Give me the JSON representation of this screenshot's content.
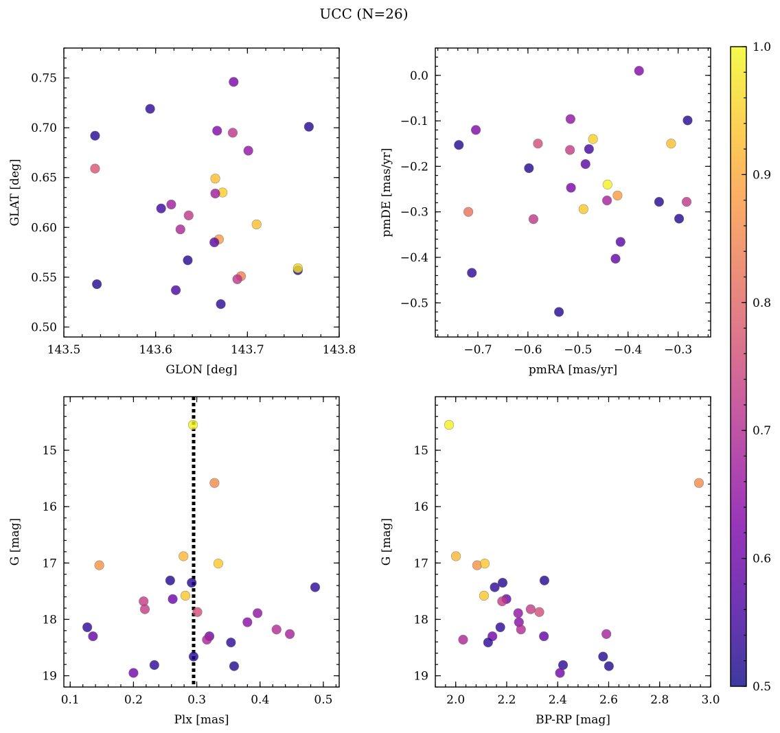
{
  "title": "UCC (N=26)",
  "colormap": {
    "name": "plasma",
    "alpha": 0.8,
    "range": [
      0.5,
      1.0
    ],
    "ticks": [
      0.5,
      0.6,
      0.7,
      0.8,
      0.9,
      1.0
    ],
    "tick_labels": [
      "0.5",
      "0.6",
      "0.7",
      "0.8",
      "0.9",
      "1.0"
    ]
  },
  "chart_data": [
    {
      "type": "scatter",
      "id": "lonlat",
      "xlabel": "GLON [deg]",
      "ylabel": "GLAT [deg]",
      "xlim": [
        143.5,
        143.8
      ],
      "ylim": [
        0.49,
        0.78
      ],
      "xticks": [
        143.5,
        143.6,
        143.7,
        143.8
      ],
      "xtick_labels": [
        "143.5",
        "143.6",
        "143.7",
        "143.8"
      ],
      "yticks": [
        0.5,
        0.55,
        0.6,
        0.65,
        0.7,
        0.75
      ],
      "ytick_labels": [
        "0.50",
        "0.55",
        "0.60",
        "0.65",
        "0.70",
        "0.75"
      ],
      "invert_y": false,
      "points": [
        {
          "x": 143.534,
          "y": 0.692,
          "c": 0.52
        },
        {
          "x": 143.594,
          "y": 0.719,
          "c": 0.53
        },
        {
          "x": 143.685,
          "y": 0.746,
          "c": 0.62
        },
        {
          "x": 143.767,
          "y": 0.701,
          "c": 0.52
        },
        {
          "x": 143.667,
          "y": 0.697,
          "c": 0.63
        },
        {
          "x": 143.684,
          "y": 0.695,
          "c": 0.72
        },
        {
          "x": 143.701,
          "y": 0.677,
          "c": 0.65
        },
        {
          "x": 143.534,
          "y": 0.659,
          "c": 0.77
        },
        {
          "x": 143.665,
          "y": 0.649,
          "c": 0.93
        },
        {
          "x": 143.673,
          "y": 0.635,
          "c": 0.95
        },
        {
          "x": 143.665,
          "y": 0.634,
          "c": 0.67
        },
        {
          "x": 143.617,
          "y": 0.623,
          "c": 0.67
        },
        {
          "x": 143.606,
          "y": 0.619,
          "c": 0.55
        },
        {
          "x": 143.636,
          "y": 0.612,
          "c": 0.72
        },
        {
          "x": 143.71,
          "y": 0.603,
          "c": 0.93
        },
        {
          "x": 143.627,
          "y": 0.598,
          "c": 0.69
        },
        {
          "x": 143.669,
          "y": 0.588,
          "c": 0.88
        },
        {
          "x": 143.664,
          "y": 0.585,
          "c": 0.58
        },
        {
          "x": 143.635,
          "y": 0.567,
          "c": 0.52
        },
        {
          "x": 143.755,
          "y": 0.557,
          "c": 0.52
        },
        {
          "x": 143.755,
          "y": 0.559,
          "c": 0.97
        },
        {
          "x": 143.536,
          "y": 0.543,
          "c": 0.52
        },
        {
          "x": 143.693,
          "y": 0.551,
          "c": 0.84
        },
        {
          "x": 143.689,
          "y": 0.548,
          "c": 0.72
        },
        {
          "x": 143.622,
          "y": 0.537,
          "c": 0.56
        },
        {
          "x": 143.671,
          "y": 0.523,
          "c": 0.53
        }
      ]
    },
    {
      "type": "scatter",
      "id": "pm",
      "xlabel": "pmRA [mas/yr]",
      "ylabel": "pmDE [mas/yr]",
      "xlim": [
        -0.785,
        -0.235
      ],
      "ylim": [
        -0.575,
        0.06
      ],
      "xticks": [
        -0.7,
        -0.6,
        -0.5,
        -0.4,
        -0.3
      ],
      "xtick_labels": [
        "−0.7",
        "−0.6",
        "−0.5",
        "−0.4",
        "−0.3"
      ],
      "yticks": [
        -0.5,
        -0.4,
        -0.3,
        -0.2,
        -0.1,
        0.0
      ],
      "ytick_labels": [
        "−0.5",
        "−0.4",
        "−0.3",
        "−0.2",
        "−0.1",
        "0.0"
      ],
      "invert_y": false,
      "points": [
        {
          "x": -0.378,
          "y": 0.01,
          "c": 0.63
        },
        {
          "x": -0.281,
          "y": -0.099,
          "c": 0.52
        },
        {
          "x": -0.515,
          "y": -0.096,
          "c": 0.65
        },
        {
          "x": -0.704,
          "y": -0.12,
          "c": 0.63
        },
        {
          "x": -0.47,
          "y": -0.14,
          "c": 0.95
        },
        {
          "x": -0.314,
          "y": -0.15,
          "c": 0.93
        },
        {
          "x": -0.738,
          "y": -0.153,
          "c": 0.52
        },
        {
          "x": -0.58,
          "y": -0.15,
          "c": 0.76
        },
        {
          "x": -0.516,
          "y": -0.164,
          "c": 0.73
        },
        {
          "x": -0.478,
          "y": -0.162,
          "c": 0.55
        },
        {
          "x": -0.485,
          "y": -0.195,
          "c": 0.58
        },
        {
          "x": -0.598,
          "y": -0.204,
          "c": 0.52
        },
        {
          "x": -0.441,
          "y": -0.24,
          "c": 0.99
        },
        {
          "x": -0.514,
          "y": -0.247,
          "c": 0.62
        },
        {
          "x": -0.421,
          "y": -0.264,
          "c": 0.88
        },
        {
          "x": -0.442,
          "y": -0.275,
          "c": 0.68
        },
        {
          "x": -0.338,
          "y": -0.278,
          "c": 0.52
        },
        {
          "x": -0.283,
          "y": -0.278,
          "c": 0.72
        },
        {
          "x": -0.489,
          "y": -0.294,
          "c": 0.94
        },
        {
          "x": -0.719,
          "y": -0.3,
          "c": 0.82
        },
        {
          "x": -0.589,
          "y": -0.316,
          "c": 0.72
        },
        {
          "x": -0.298,
          "y": -0.315,
          "c": 0.52
        },
        {
          "x": -0.415,
          "y": -0.366,
          "c": 0.58
        },
        {
          "x": -0.425,
          "y": -0.403,
          "c": 0.59
        },
        {
          "x": -0.712,
          "y": -0.434,
          "c": 0.53
        },
        {
          "x": -0.538,
          "y": -0.52,
          "c": 0.52
        }
      ]
    },
    {
      "type": "scatter",
      "id": "plx",
      "xlabel": "Plx [mas]",
      "ylabel": "G [mag]",
      "xlim": [
        0.09,
        0.525
      ],
      "ylim": [
        19.2,
        14.05
      ],
      "xticks": [
        0.1,
        0.2,
        0.3,
        0.4,
        0.5
      ],
      "xtick_labels": [
        "0.1",
        "0.2",
        "0.3",
        "0.4",
        "0.5"
      ],
      "yticks": [
        15,
        16,
        17,
        18,
        19
      ],
      "ytick_labels": [
        "15",
        "16",
        "17",
        "18",
        "19"
      ],
      "invert_y": true,
      "vline": {
        "x": 0.295,
        "style": "dotted"
      },
      "points": [
        {
          "x": 0.294,
          "y": 14.55,
          "c": 0.99
        },
        {
          "x": 0.328,
          "y": 15.58,
          "c": 0.86
        },
        {
          "x": 0.146,
          "y": 17.04,
          "c": 0.87
        },
        {
          "x": 0.279,
          "y": 16.88,
          "c": 0.92
        },
        {
          "x": 0.334,
          "y": 17.01,
          "c": 0.94
        },
        {
          "x": 0.258,
          "y": 17.31,
          "c": 0.52
        },
        {
          "x": 0.292,
          "y": 17.35,
          "c": 0.52
        },
        {
          "x": 0.487,
          "y": 17.43,
          "c": 0.53
        },
        {
          "x": 0.282,
          "y": 17.58,
          "c": 0.94
        },
        {
          "x": 0.262,
          "y": 17.64,
          "c": 0.6
        },
        {
          "x": 0.216,
          "y": 17.68,
          "c": 0.73
        },
        {
          "x": 0.218,
          "y": 17.82,
          "c": 0.73
        },
        {
          "x": 0.301,
          "y": 17.87,
          "c": 0.76
        },
        {
          "x": 0.396,
          "y": 17.89,
          "c": 0.65
        },
        {
          "x": 0.38,
          "y": 18.05,
          "c": 0.64
        },
        {
          "x": 0.127,
          "y": 18.14,
          "c": 0.53
        },
        {
          "x": 0.426,
          "y": 18.18,
          "c": 0.7
        },
        {
          "x": 0.447,
          "y": 18.26,
          "c": 0.68
        },
        {
          "x": 0.136,
          "y": 18.3,
          "c": 0.59
        },
        {
          "x": 0.32,
          "y": 18.3,
          "c": 0.61
        },
        {
          "x": 0.316,
          "y": 18.36,
          "c": 0.69
        },
        {
          "x": 0.354,
          "y": 18.41,
          "c": 0.53
        },
        {
          "x": 0.295,
          "y": 18.66,
          "c": 0.52
        },
        {
          "x": 0.233,
          "y": 18.81,
          "c": 0.53
        },
        {
          "x": 0.359,
          "y": 18.83,
          "c": 0.52
        },
        {
          "x": 0.2,
          "y": 18.95,
          "c": 0.61
        }
      ]
    },
    {
      "type": "scatter",
      "id": "cmd",
      "xlabel": "BP-RP [mag]",
      "ylabel": "G [mag]",
      "xlim": [
        1.92,
        3.0
      ],
      "ylim": [
        19.2,
        14.05
      ],
      "xticks": [
        2.0,
        2.2,
        2.4,
        2.6,
        2.8,
        3.0
      ],
      "xtick_labels": [
        "2.0",
        "2.2",
        "2.4",
        "2.6",
        "2.8",
        "3.0"
      ],
      "yticks": [
        15,
        16,
        17,
        18,
        19
      ],
      "ytick_labels": [
        "15",
        "16",
        "17",
        "18",
        "19"
      ],
      "invert_y": true,
      "points": [
        {
          "x": 1.974,
          "y": 14.55,
          "c": 0.99
        },
        {
          "x": 2.954,
          "y": 15.58,
          "c": 0.86
        },
        {
          "x": 2.001,
          "y": 16.88,
          "c": 0.92
        },
        {
          "x": 2.084,
          "y": 17.04,
          "c": 0.87
        },
        {
          "x": 2.114,
          "y": 17.01,
          "c": 0.94
        },
        {
          "x": 2.348,
          "y": 17.31,
          "c": 0.52
        },
        {
          "x": 2.184,
          "y": 17.35,
          "c": 0.52
        },
        {
          "x": 2.153,
          "y": 17.43,
          "c": 0.53
        },
        {
          "x": 2.111,
          "y": 17.58,
          "c": 0.94
        },
        {
          "x": 2.199,
          "y": 17.64,
          "c": 0.6
        },
        {
          "x": 2.182,
          "y": 17.68,
          "c": 0.73
        },
        {
          "x": 2.294,
          "y": 17.82,
          "c": 0.73
        },
        {
          "x": 2.328,
          "y": 17.87,
          "c": 0.76
        },
        {
          "x": 2.245,
          "y": 17.89,
          "c": 0.65
        },
        {
          "x": 2.248,
          "y": 18.05,
          "c": 0.64
        },
        {
          "x": 2.175,
          "y": 18.14,
          "c": 0.53
        },
        {
          "x": 2.256,
          "y": 18.18,
          "c": 0.7
        },
        {
          "x": 2.591,
          "y": 18.26,
          "c": 0.68
        },
        {
          "x": 2.346,
          "y": 18.3,
          "c": 0.59
        },
        {
          "x": 2.144,
          "y": 18.3,
          "c": 0.61
        },
        {
          "x": 2.029,
          "y": 18.36,
          "c": 0.69
        },
        {
          "x": 2.127,
          "y": 18.41,
          "c": 0.53
        },
        {
          "x": 2.578,
          "y": 18.66,
          "c": 0.52
        },
        {
          "x": 2.421,
          "y": 18.81,
          "c": 0.53
        },
        {
          "x": 2.601,
          "y": 18.83,
          "c": 0.52
        },
        {
          "x": 2.409,
          "y": 18.95,
          "c": 0.61
        }
      ]
    }
  ]
}
